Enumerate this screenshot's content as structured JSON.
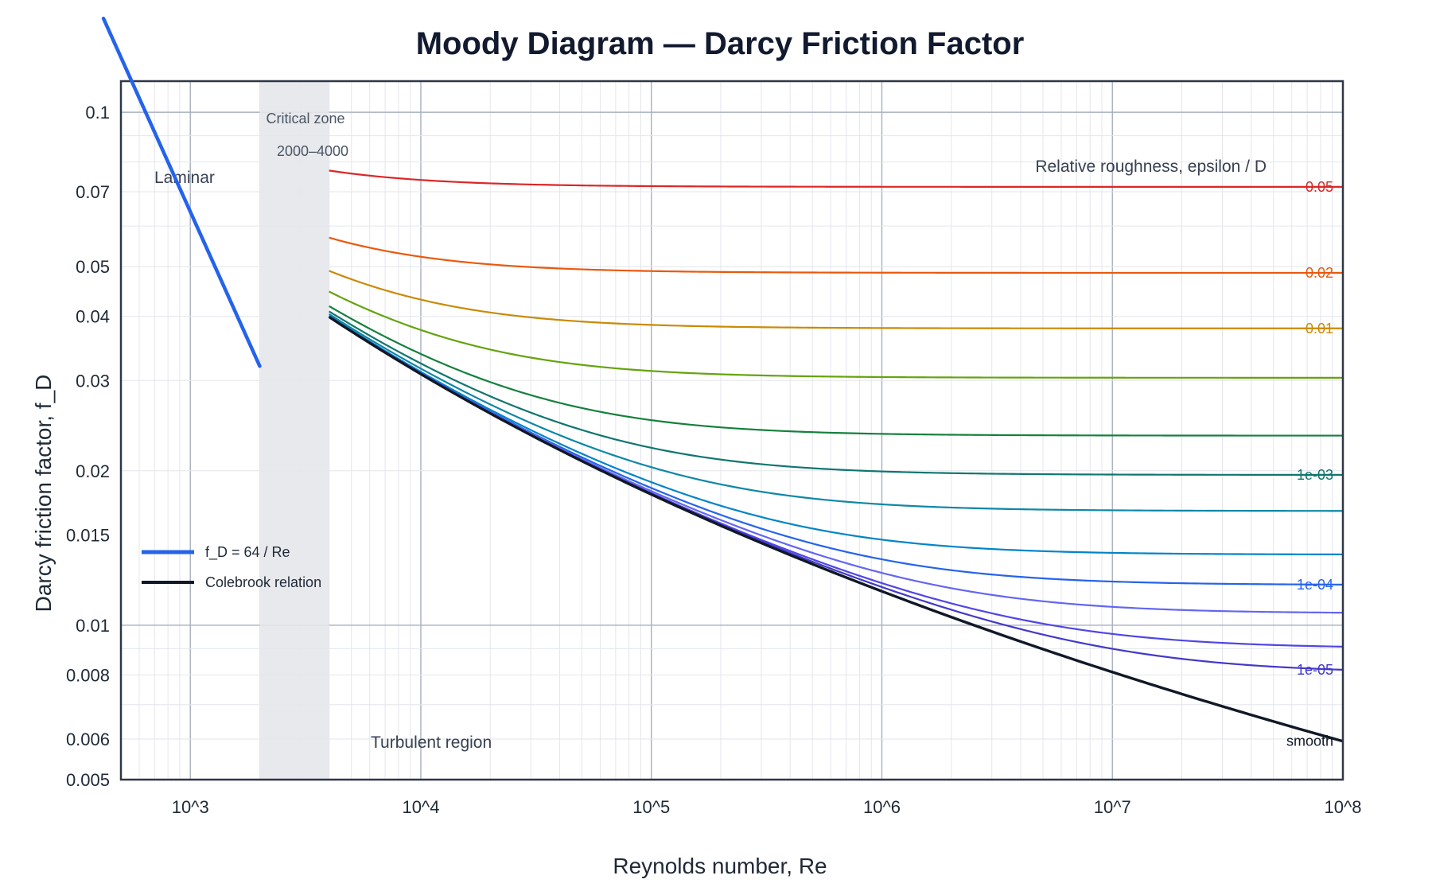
{
  "chart_data": {
    "type": "line",
    "title": "Moody Diagram — Darcy Friction Factor",
    "xlabel": "Reynolds number, Re",
    "ylabel": "Darcy friction factor, f_D",
    "xscale": "log",
    "yscale": "log",
    "xlim": [
      500,
      100000000
    ],
    "ylim": [
      0.005,
      0.115
    ],
    "grid": true,
    "x_ticks": [
      {
        "value": 1000,
        "label": "10^3"
      },
      {
        "value": 10000,
        "label": "10^4"
      },
      {
        "value": 100000,
        "label": "10^5"
      },
      {
        "value": 1000000,
        "label": "10^6"
      },
      {
        "value": 10000000,
        "label": "10^7"
      },
      {
        "value": 100000000,
        "label": "10^8"
      }
    ],
    "y_ticks": [
      {
        "value": 0.005,
        "label": "0.005"
      },
      {
        "value": 0.006,
        "label": "0.006"
      },
      {
        "value": 0.008,
        "label": "0.008"
      },
      {
        "value": 0.01,
        "label": "0.01"
      },
      {
        "value": 0.015,
        "label": "0.015"
      },
      {
        "value": 0.02,
        "label": "0.02"
      },
      {
        "value": 0.03,
        "label": "0.03"
      },
      {
        "value": 0.04,
        "label": "0.04"
      },
      {
        "value": 0.05,
        "label": "0.05"
      },
      {
        "value": 0.07,
        "label": "0.07"
      },
      {
        "value": 0.1,
        "label": "0.1"
      }
    ],
    "laminar": {
      "x_range": [
        500,
        2000
      ],
      "color": "#2563eb",
      "legend": "f_D = 64 / Re"
    },
    "critical_zone": {
      "x_range": [
        2000,
        4000
      ],
      "label_line1": "Critical zone",
      "label_line2": "2000–4000",
      "color": "#e5e7eb"
    },
    "turbulent_x_range": [
      4000,
      100000000
    ],
    "roughness_curves": [
      {
        "roughness": 0.05,
        "label": "0.05",
        "color": "#dc2626"
      },
      {
        "roughness": 0.02,
        "label": "0.02",
        "color": "#ea580c"
      },
      {
        "roughness": 0.01,
        "label": "0.01",
        "color": "#ca8a04"
      },
      {
        "roughness": 0.005,
        "label": "",
        "color": "#65a30d"
      },
      {
        "roughness": 0.002,
        "label": "",
        "color": "#15803d"
      },
      {
        "roughness": 0.001,
        "label": "1e-03",
        "color": "#0f766e"
      },
      {
        "roughness": 0.0005,
        "label": "",
        "color": "#0e87a8"
      },
      {
        "roughness": 0.0002,
        "label": "",
        "color": "#0284c7"
      },
      {
        "roughness": 0.0001,
        "label": "1e-04",
        "color": "#2563eb"
      },
      {
        "roughness": 5e-05,
        "label": "",
        "color": "#6366f1"
      },
      {
        "roughness": 2e-05,
        "label": "",
        "color": "#4f46e5"
      },
      {
        "roughness": 1e-05,
        "label": "1e-05",
        "color": "#4338ca"
      },
      {
        "roughness": 0,
        "label": "smooth",
        "color": "#111827"
      }
    ],
    "legend": {
      "position": "bottom-left",
      "entries": [
        {
          "label": "f_D = 64 / Re",
          "color": "#2563eb"
        },
        {
          "label": "Colebrook relation",
          "color": "#111827"
        }
      ]
    },
    "annotations": {
      "laminar": "Laminar",
      "turbulent": "Turbulent region",
      "roughness_header": "Relative roughness, epsilon / D"
    }
  }
}
